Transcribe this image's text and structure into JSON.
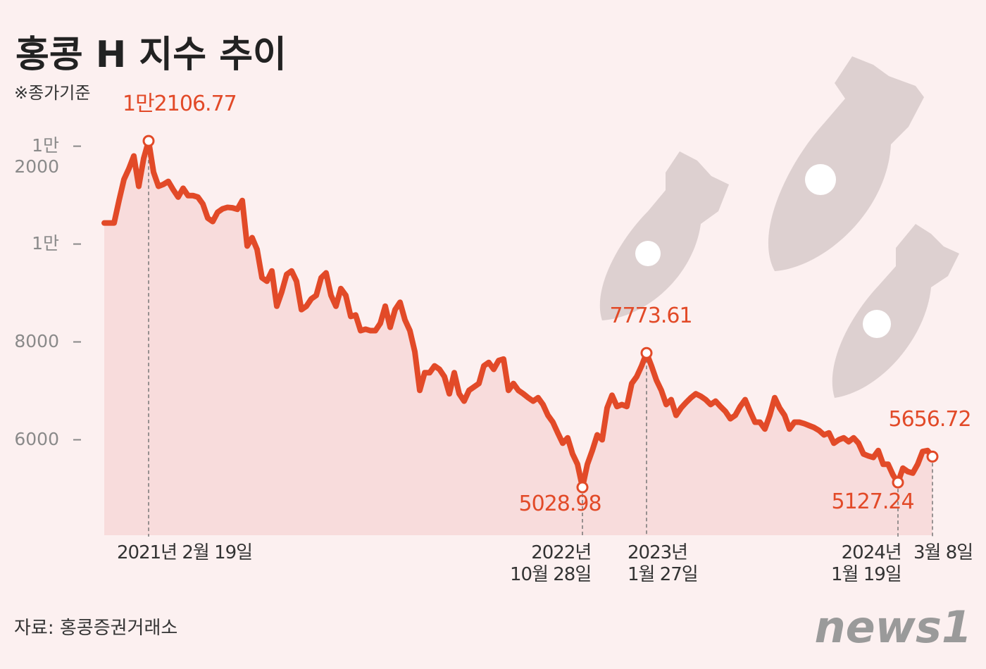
{
  "chart_data": {
    "type": "line",
    "title": "홍콩 H 지수 추이",
    "subtitle": "※종가기준",
    "source": "자료: 홍콩증권거래소",
    "logo": "news1",
    "categories": [
      null,
      null,
      null,
      null,
      null,
      null,
      null,
      null,
      null,
      "2021년 2월 19일",
      null,
      null,
      null,
      null,
      null,
      null,
      null,
      null,
      null,
      null,
      null,
      null,
      null,
      null,
      null,
      null,
      null,
      null,
      null,
      null,
      null,
      null,
      null,
      null,
      null,
      null,
      null,
      null,
      null,
      null,
      null,
      null,
      null,
      null,
      null,
      null,
      null,
      null,
      null,
      null,
      null,
      null,
      null,
      null,
      null,
      null,
      null,
      null,
      null,
      null,
      null,
      null,
      null,
      null,
      null,
      null,
      null,
      null,
      null,
      null,
      null,
      null,
      null,
      null,
      null,
      null,
      null,
      null,
      null,
      null,
      null,
      null,
      null,
      null,
      null,
      null,
      null,
      null,
      null,
      null,
      null,
      null,
      null,
      null,
      null,
      null,
      null,
      "2022년\n10월 28일",
      null,
      null,
      null,
      null,
      null,
      null,
      null,
      null,
      null,
      null,
      null,
      null,
      "2023년\n1월 27일",
      null,
      null,
      null,
      null,
      null,
      null,
      null,
      null,
      null,
      null,
      null,
      null,
      null,
      null,
      null,
      null,
      null,
      null,
      null,
      null,
      null,
      null,
      null,
      null,
      null,
      null,
      null,
      null,
      null,
      null,
      null,
      null,
      null,
      null,
      null,
      null,
      null,
      null,
      null,
      null,
      null,
      null,
      null,
      null,
      null,
      null,
      null,
      null,
      null,
      null,
      "2024년\n1월 19일",
      null,
      null,
      null,
      null,
      null,
      null,
      "3월 8일"
    ],
    "series": [
      {
        "color": "#e24a28",
        "values": [
          10430,
          10430,
          10430,
          10890,
          11320,
          11540,
          11800,
          11180,
          11750,
          12106.77,
          11470,
          11180,
          11220,
          11280,
          11110,
          10960,
          11140,
          10990,
          10990,
          10960,
          10820,
          10530,
          10460,
          10650,
          10720,
          10750,
          10740,
          10710,
          10890,
          9960,
          10130,
          9890,
          9310,
          9240,
          9450,
          8730,
          9020,
          9380,
          9450,
          9240,
          8660,
          8730,
          8880,
          8950,
          9310,
          9410,
          8950,
          8730,
          9090,
          8950,
          8520,
          8550,
          8230,
          8260,
          8230,
          8230,
          8380,
          8730,
          8300,
          8660,
          8810,
          8450,
          8230,
          7800,
          7010,
          7370,
          7370,
          7510,
          7440,
          7290,
          6940,
          7370,
          6940,
          6790,
          7010,
          7080,
          7150,
          7510,
          7580,
          7440,
          7620,
          7650,
          7010,
          7150,
          7010,
          6940,
          6860,
          6790,
          6860,
          6720,
          6500,
          6360,
          6140,
          5930,
          6040,
          5710,
          5500,
          5028.98,
          5500,
          5780,
          6100,
          6000,
          6650,
          6910,
          6680,
          6720,
          6680,
          7150,
          7290,
          7510,
          7773.61,
          7510,
          7220,
          7010,
          6720,
          6820,
          6500,
          6650,
          6760,
          6860,
          6940,
          6890,
          6820,
          6720,
          6790,
          6680,
          6580,
          6430,
          6500,
          6680,
          6820,
          6580,
          6360,
          6360,
          6220,
          6500,
          6860,
          6650,
          6500,
          6220,
          6360,
          6360,
          6330,
          6290,
          6250,
          6190,
          6100,
          6140,
          5930,
          6000,
          6040,
          5960,
          6040,
          5930,
          5710,
          5670,
          5640,
          5780,
          5500,
          5500,
          5280,
          5127.24,
          5420,
          5350,
          5320,
          5500,
          5760,
          5780,
          5656.72
        ],
        "value_labels": [
          null,
          null,
          null,
          null,
          null,
          null,
          null,
          null,
          null,
          "1만2106.77",
          null,
          null,
          null,
          null,
          null,
          null,
          null,
          null,
          null,
          null,
          null,
          null,
          null,
          null,
          null,
          null,
          null,
          null,
          null,
          null,
          null,
          null,
          null,
          null,
          null,
          null,
          null,
          null,
          null,
          null,
          null,
          null,
          null,
          null,
          null,
          null,
          null,
          null,
          null,
          null,
          null,
          null,
          null,
          null,
          null,
          null,
          null,
          null,
          null,
          null,
          null,
          null,
          null,
          null,
          null,
          null,
          null,
          null,
          null,
          null,
          null,
          null,
          null,
          null,
          null,
          null,
          null,
          null,
          null,
          null,
          null,
          null,
          null,
          null,
          null,
          null,
          null,
          null,
          null,
          null,
          null,
          null,
          null,
          null,
          null,
          null,
          null,
          "5028.98",
          null,
          null,
          null,
          null,
          null,
          null,
          null,
          null,
          null,
          null,
          null,
          null,
          "7773.61",
          null,
          null,
          null,
          null,
          null,
          null,
          null,
          null,
          null,
          null,
          null,
          null,
          null,
          null,
          null,
          null,
          null,
          null,
          null,
          null,
          null,
          null,
          null,
          null,
          null,
          null,
          null,
          null,
          null,
          null,
          null,
          null,
          null,
          null,
          null,
          null,
          null,
          null,
          null,
          null,
          null,
          null,
          null,
          null,
          null,
          null,
          null,
          null,
          null,
          null,
          "5127.24",
          null,
          null,
          null,
          null,
          null,
          null,
          "5656.72"
        ]
      }
    ],
    "ylim": [
      4050,
      12800
    ],
    "yticks": [
      6000,
      8000,
      {
        "value": 10000,
        "label": "1만"
      },
      {
        "value": 12000,
        "label": "1만\n2000"
      }
    ],
    "area_color": "#f8dcdc",
    "background": "#fcf0f0"
  }
}
